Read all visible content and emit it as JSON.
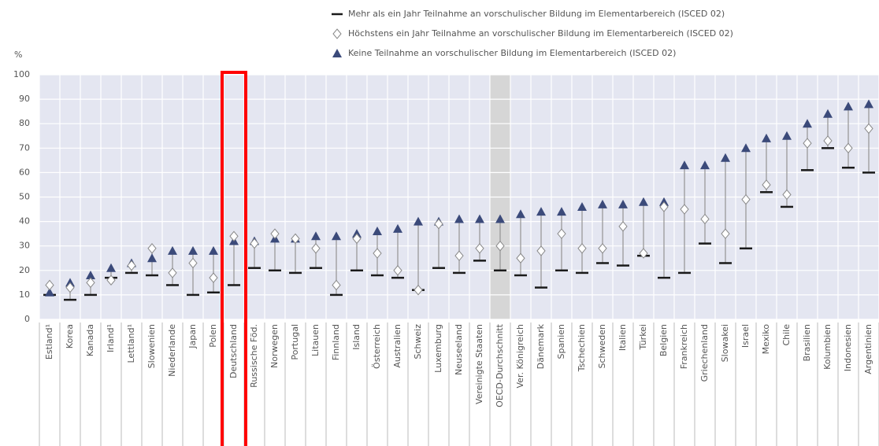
{
  "chart_data": {
    "type": "range-dot",
    "y_label": "%",
    "categories": [
      "Estland¹",
      "Korea",
      "Kanada",
      "Irland¹",
      "Lettland¹",
      "Slowenien",
      "Niederlande",
      "Japan",
      "Polen",
      "Deutschland",
      "Russische Föd.",
      "Norwegen",
      "Portugal",
      "Litauen",
      "Finnland",
      "Island",
      "Österreich",
      "Australien",
      "Schweiz",
      "Luxemburg",
      "Neuseeland",
      "Vereinigte Staaten",
      "OECD-Durchschnitt",
      "Ver. Königreich",
      "Dänemark",
      "Spanien",
      "Tschechien",
      "Schweden",
      "Italien",
      "Türkei",
      "Belgien",
      "Frankreich",
      "Griechenland",
      "Slowakei",
      "Israel",
      "Mexiko",
      "Chile",
      "Brasilien",
      "Kolumbien",
      "Indonesien",
      "Argentinien"
    ],
    "series": [
      {
        "name": "Mehr als ein Jahr Teilnahme an vorschulischer Bildung im Elementarbereich (ISCED 02)",
        "marker": "bar",
        "color": "#1a1a1a",
        "values": [
          10,
          8,
          10,
          17,
          19,
          18,
          14,
          10,
          11,
          14,
          21,
          20,
          19,
          21,
          10,
          20,
          18,
          17,
          12,
          21,
          19,
          24,
          20,
          18,
          13,
          20,
          19,
          23,
          22,
          26,
          17,
          19,
          31,
          23,
          29,
          52,
          46,
          61,
          70,
          62,
          60
        ]
      },
      {
        "name": "Höchstens ein Jahr Teilnahme an vorschulischer Bildung im Elementarbereich (ISCED 02)",
        "marker": "diamond",
        "color": "#888888",
        "values": [
          14,
          13,
          15,
          16,
          22,
          29,
          19,
          23,
          17,
          34,
          31,
          35,
          33,
          29,
          14,
          33,
          27,
          20,
          12,
          39,
          26,
          29,
          30,
          25,
          28,
          35,
          29,
          29,
          38,
          27,
          46,
          45,
          41,
          35,
          49,
          55,
          51,
          72,
          73,
          70,
          78
        ]
      },
      {
        "name": "Keine Teilnahme an vorschulischer Bildung im Elementarbereich (ISCED 02)",
        "marker": "triangle",
        "color": "#3b4a7a",
        "values": [
          11,
          15,
          18,
          21,
          23,
          25,
          28,
          28,
          28,
          32,
          32,
          33,
          33,
          34,
          34,
          35,
          36,
          37,
          40,
          40,
          41,
          41,
          41,
          43,
          44,
          44,
          46,
          47,
          47,
          48,
          48,
          63,
          63,
          66,
          70,
          74,
          75,
          80,
          84,
          87,
          88
        ]
      }
    ],
    "ylim": [
      0,
      100
    ],
    "yticks": [
      0,
      10,
      20,
      30,
      40,
      50,
      60,
      70,
      80,
      90,
      100
    ],
    "grid": true
  }
}
